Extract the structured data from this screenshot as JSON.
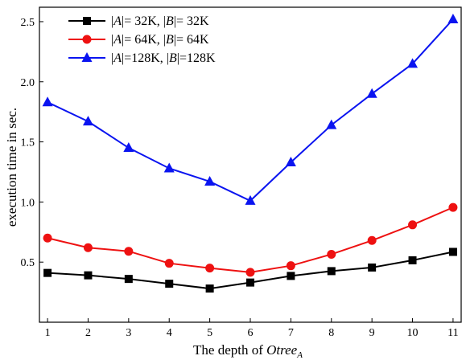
{
  "chart_data": {
    "type": "line",
    "title": "",
    "xlabel": "The depth of ",
    "xlabel_italic": "Otree",
    "xlabel_subscript": "A",
    "ylabel": "execution time in sec.",
    "xlim": [
      0.8,
      11.2
    ],
    "ylim": [
      0.0,
      2.62
    ],
    "x": [
      1,
      2,
      3,
      4,
      5,
      6,
      7,
      8,
      9,
      10,
      11
    ],
    "x_tick_labels": [
      "1",
      "2",
      "3",
      "4",
      "5",
      "6",
      "7",
      "8",
      "9",
      "10",
      "11"
    ],
    "y_ticks": [
      0.5,
      1.0,
      1.5,
      2.0,
      2.5
    ],
    "y_tick_labels": [
      "0.5",
      "1.0",
      "1.5",
      "2.0",
      "2.5"
    ],
    "grid": false,
    "legend_position": "top-left",
    "series": [
      {
        "name": "|A|=  32K, |B|=  32K",
        "legend_parts": [
          "|",
          "A",
          "|=  32K, |",
          "B",
          "|=  32K"
        ],
        "marker": "square",
        "color": "#000000",
        "values": [
          0.41,
          0.39,
          0.36,
          0.32,
          0.28,
          0.33,
          0.385,
          0.425,
          0.455,
          0.515,
          0.585
        ]
      },
      {
        "name": "|A|=  64K, |B|=  64K",
        "legend_parts": [
          "|",
          "A",
          "|=  64K, |",
          "B",
          "|=  64K"
        ],
        "marker": "circle",
        "color": "#ee1111",
        "values": [
          0.7,
          0.62,
          0.59,
          0.49,
          0.45,
          0.415,
          0.47,
          0.565,
          0.68,
          0.81,
          0.955
        ]
      },
      {
        "name": "|A|=128K, |B|=128K",
        "legend_parts": [
          "|",
          "A",
          "|=128K, |",
          "B",
          "|=128K"
        ],
        "marker": "triangle",
        "color": "#0a14f0",
        "values": [
          1.83,
          1.67,
          1.45,
          1.28,
          1.17,
          1.01,
          1.33,
          1.64,
          1.9,
          2.15,
          2.52
        ]
      }
    ]
  }
}
